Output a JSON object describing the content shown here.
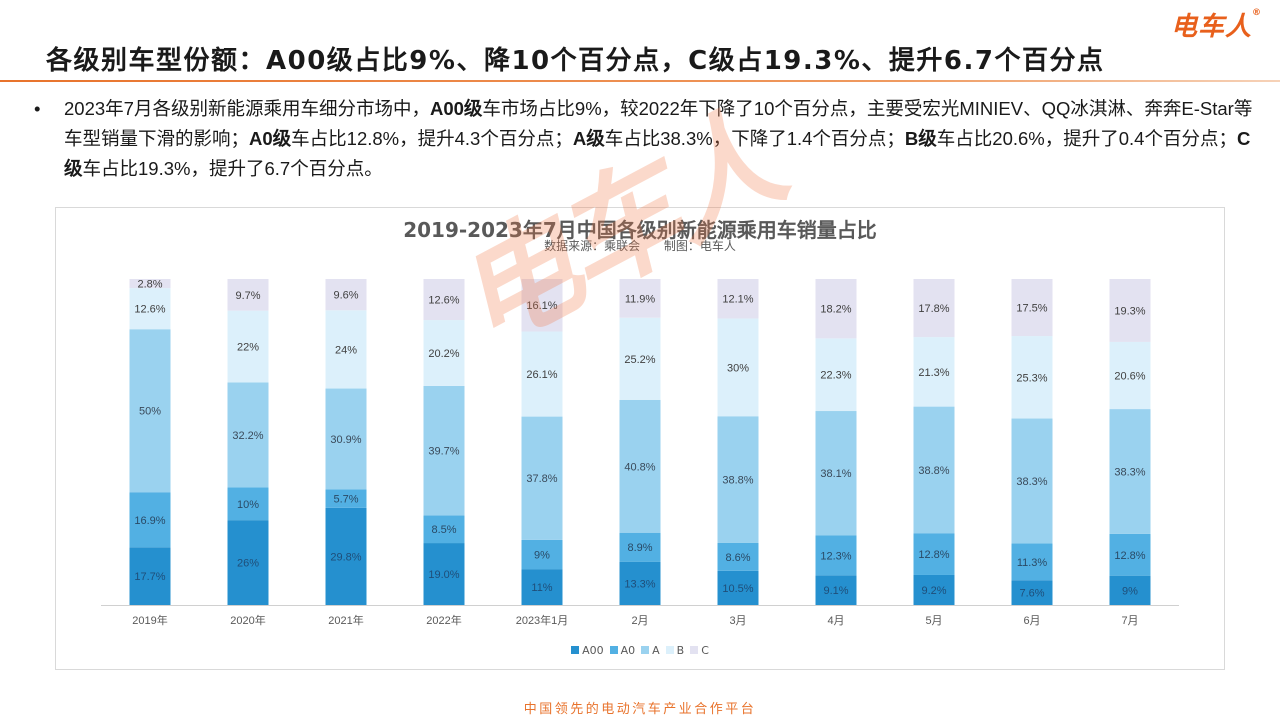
{
  "header": {
    "logo_text": "电车人",
    "logo_mark": "®",
    "title": "各级别车型份额：A00级占比9%、降10个百分点，C级占19.3%、提升6.7个百分点"
  },
  "bullet": {
    "marker": "•",
    "segments": [
      {
        "text": "2023年7月各级别新能源乘用车细分市场中，",
        "bold": false
      },
      {
        "text": "A00级",
        "bold": true
      },
      {
        "text": "车市场占比9%，较2022年下降了10个百分点，主要受宏光MINIEV、QQ冰淇淋、奔奔E-Star等车型销量下滑的影响；",
        "bold": false
      },
      {
        "text": "A0级",
        "bold": true
      },
      {
        "text": "车占比12.8%，提升4.3个百分点；",
        "bold": false
      },
      {
        "text": "A级",
        "bold": true
      },
      {
        "text": "车占比38.3%，下降了1.4个百分点；",
        "bold": false
      },
      {
        "text": "B级",
        "bold": true
      },
      {
        "text": "车占比20.6%，提升了0.4个百分点；",
        "bold": false
      },
      {
        "text": "C级",
        "bold": true
      },
      {
        "text": "车占比19.3%，提升了6.7个百分点。",
        "bold": false
      }
    ]
  },
  "chart_data": {
    "type": "bar",
    "stacked": true,
    "normalized_100": true,
    "title": "2019-2023年7月中国各级别新能源乘用车销量占比",
    "subtitle_source": "数据来源：乘联会",
    "subtitle_author": "制图：电车人",
    "xlabel": "",
    "ylabel": "",
    "ylim": [
      0,
      100
    ],
    "grid": false,
    "legend_position": "bottom",
    "categories": [
      "2019年",
      "2020年",
      "2021年",
      "2022年",
      "2023年1月",
      "2月",
      "3月",
      "4月",
      "5月",
      "6月",
      "7月"
    ],
    "series": [
      {
        "name": "A00",
        "color": "#2590cf",
        "values": [
          17.7,
          26,
          29.8,
          19.0,
          11,
          13.3,
          10.5,
          9.1,
          9.2,
          7.6,
          9
        ],
        "labels": [
          "17.7%",
          "26%",
          "29.8%",
          "19.0%",
          "11%",
          "13.3%",
          "10.5%",
          "9.1%",
          "9.2%",
          "7.6%",
          "9%"
        ]
      },
      {
        "name": "A0",
        "color": "#52b0e3",
        "values": [
          16.9,
          10,
          5.7,
          8.5,
          9,
          8.9,
          8.6,
          12.3,
          12.8,
          11.3,
          12.8
        ],
        "labels": [
          "16.9%",
          "10%",
          "5.7%",
          "8.5%",
          "9%",
          "8.9%",
          "8.6%",
          "12.3%",
          "12.8%",
          "11.3%",
          "12.8%"
        ]
      },
      {
        "name": "A",
        "color": "#9ad2ef",
        "values": [
          50,
          32.2,
          30.9,
          39.7,
          37.8,
          40.8,
          38.8,
          38.1,
          38.8,
          38.3,
          38.3
        ],
        "labels": [
          "50%",
          "32.2%",
          "30.9%",
          "39.7%",
          "37.8%",
          "40.8%",
          "38.8%",
          "38.1%",
          "38.8%",
          "38.3%",
          "38.3%"
        ]
      },
      {
        "name": "B",
        "color": "#dcf0fb",
        "values": [
          12.6,
          22,
          24,
          20.2,
          26.1,
          25.2,
          30,
          22.3,
          21.3,
          25.3,
          20.6
        ],
        "labels": [
          "12.6%",
          "22%",
          "24%",
          "20.2%",
          "26.1%",
          "25.2%",
          "30%",
          "22.3%",
          "21.3%",
          "25.3%",
          "20.6%"
        ]
      },
      {
        "name": "C",
        "color": "#e3e2f1",
        "values": [
          2.8,
          9.7,
          9.6,
          12.6,
          16.1,
          11.9,
          12.1,
          18.2,
          17.8,
          17.5,
          19.3
        ],
        "labels": [
          "2.8%",
          "9.7%",
          "9.6%",
          "12.6%",
          "16.1%",
          "11.9%",
          "12.1%",
          "18.2%",
          "17.8%",
          "17.5%",
          "19.3%"
        ]
      }
    ]
  },
  "watermark": "电车人",
  "footer": "中国领先的电动汽车产业合作平台"
}
